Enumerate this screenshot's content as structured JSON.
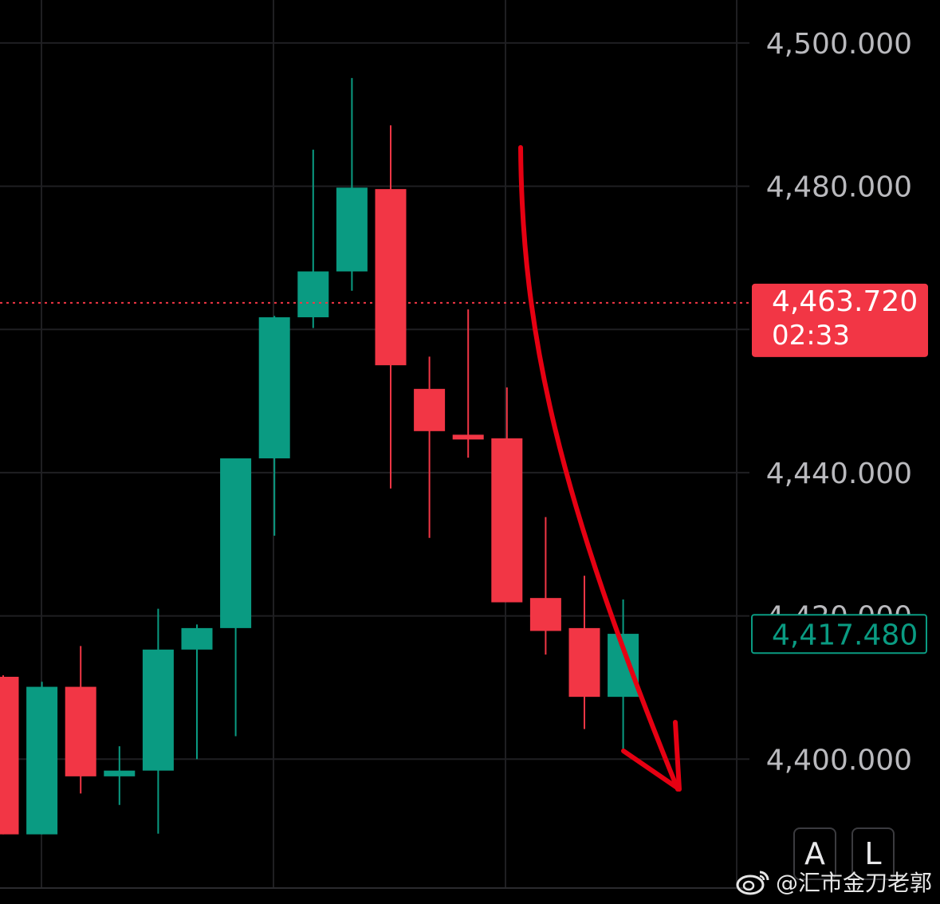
{
  "colors": {
    "bull": "#0a9b82",
    "bear": "#f23645",
    "grid": "#1f1f22",
    "axis_text": "#b9b9bd",
    "annotation": "#e60012"
  },
  "chart_data": {
    "type": "candlestick",
    "title": "",
    "y_ticks": [
      4400,
      4420,
      4440,
      4480,
      4500
    ],
    "y_tick_labels": [
      "4,400.000",
      "4,420.000",
      "4,440.000",
      "4,480.000",
      "4,500.000"
    ],
    "ylim": [
      4382,
      4506
    ],
    "grid": true,
    "candles": [
      {
        "open": 4411.5,
        "high": 4411.7,
        "low": 4389.5,
        "close": 4389.5
      },
      {
        "open": 4389.5,
        "high": 4410.8,
        "low": 4389.5,
        "close": 4410.1
      },
      {
        "open": 4410.1,
        "high": 4415.8,
        "low": 4395.2,
        "close": 4397.6
      },
      {
        "open": 4397.6,
        "high": 4401.8,
        "low": 4393.6,
        "close": 4398.4
      },
      {
        "open": 4398.4,
        "high": 4421.0,
        "low": 4389.6,
        "close": 4415.3
      },
      {
        "open": 4415.3,
        "high": 4418.8,
        "low": 4400.0,
        "close": 4418.3
      },
      {
        "open": 4418.3,
        "high": 4442.0,
        "low": 4403.2,
        "close": 4442.0
      },
      {
        "open": 4442.0,
        "high": 4461.9,
        "low": 4431.2,
        "close": 4461.7
      },
      {
        "open": 4461.7,
        "high": 4485.1,
        "low": 4460.2,
        "close": 4468.1
      },
      {
        "open": 4468.1,
        "high": 4495.1,
        "low": 4465.4,
        "close": 4479.8
      },
      {
        "open": 4479.6,
        "high": 4488.5,
        "low": 4437.8,
        "close": 4455.0
      },
      {
        "open": 4451.7,
        "high": 4456.2,
        "low": 4430.9,
        "close": 4445.8
      },
      {
        "open": 4445.3,
        "high": 4462.8,
        "low": 4442.1,
        "close": 4444.8
      },
      {
        "open": 4444.8,
        "high": 4451.9,
        "low": 4421.9,
        "close": 4421.9
      },
      {
        "open": 4422.5,
        "high": 4433.8,
        "low": 4414.6,
        "close": 4417.9
      },
      {
        "open": 4418.3,
        "high": 4425.6,
        "low": 4404.2,
        "close": 4408.7
      },
      {
        "open": 4408.7,
        "high": 4422.3,
        "low": 4401.1,
        "close": 4417.5
      }
    ],
    "last_price": {
      "value": "4,463.720",
      "countdown": "02:33"
    },
    "current_price": {
      "value": "4,417.480"
    }
  },
  "buttons": {
    "auto": "A",
    "log": "L"
  },
  "watermark": {
    "text": "@汇市金刀老郭",
    "icon": "weibo-icon"
  }
}
